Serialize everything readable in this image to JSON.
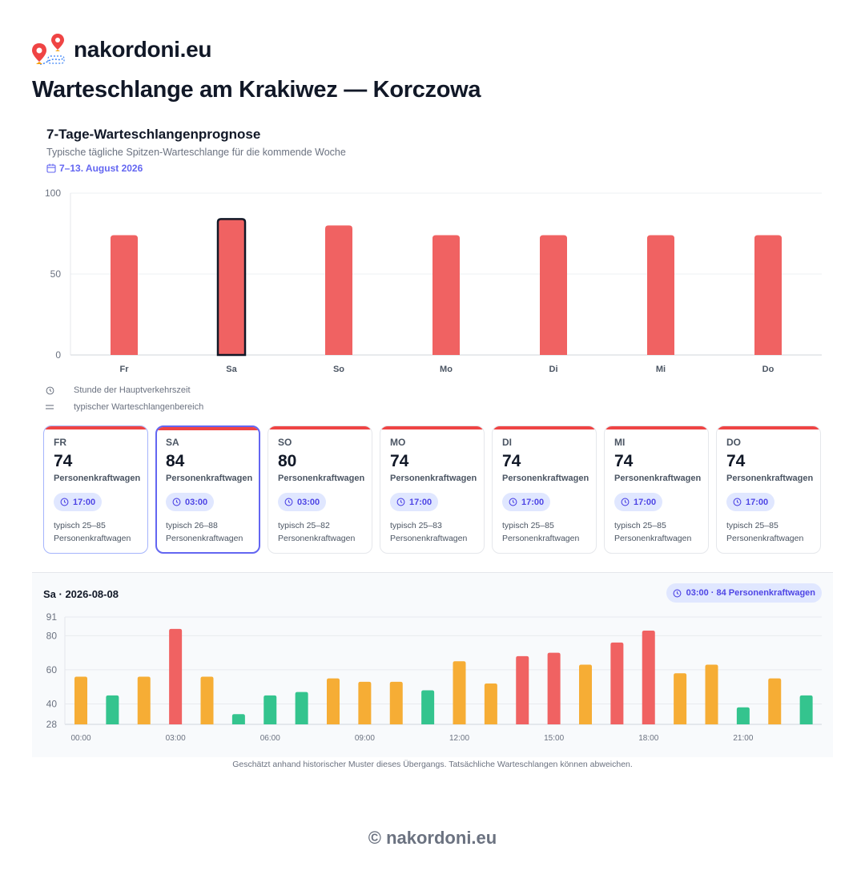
{
  "brand": {
    "name": "nakordoni.eu",
    "logo_icon": "map-pin-route-icon"
  },
  "page_title": "Warteschlange am Krakiwez — Korczowa",
  "forecast": {
    "title": "7-Tage-Warteschlangenprognose",
    "subtitle": "Typische tägliche Spitzen-Warteschlange für die kommende Woche",
    "date_range": "7–13. August 2026",
    "date_icon": "calendar-icon"
  },
  "legend": {
    "peak_hour": {
      "icon": "clock-icon",
      "label": "Stunde der Hauptverkehrszeit"
    },
    "range": {
      "icon": "equals-icon",
      "label": "typischer Warteschlangenbereich"
    }
  },
  "day_cards": [
    {
      "abbr": "FR",
      "value": "74",
      "unit": "Personenkraftwagen",
      "peak_time": "17:00",
      "range_text": "typisch 25–85",
      "range_unit": "Personenkraftwagen"
    },
    {
      "abbr": "SA",
      "value": "84",
      "unit": "Personenkraftwagen",
      "peak_time": "03:00",
      "range_text": "typisch 26–88",
      "range_unit": "Personenkraftwagen"
    },
    {
      "abbr": "SO",
      "value": "80",
      "unit": "Personenkraftwagen",
      "peak_time": "03:00",
      "range_text": "typisch 25–82",
      "range_unit": "Personenkraftwagen"
    },
    {
      "abbr": "MO",
      "value": "74",
      "unit": "Personenkraftwagen",
      "peak_time": "17:00",
      "range_text": "typisch 25–83",
      "range_unit": "Personenkraftwagen"
    },
    {
      "abbr": "DI",
      "value": "74",
      "unit": "Personenkraftwagen",
      "peak_time": "17:00",
      "range_text": "typisch 25–85",
      "range_unit": "Personenkraftwagen"
    },
    {
      "abbr": "MI",
      "value": "74",
      "unit": "Personenkraftwagen",
      "peak_time": "17:00",
      "range_text": "typisch 25–85",
      "range_unit": "Personenkraftwagen"
    },
    {
      "abbr": "DO",
      "value": "74",
      "unit": "Personenkraftwagen",
      "peak_time": "17:00",
      "range_text": "typisch 25–85",
      "range_unit": "Personenkraftwagen"
    }
  ],
  "hourly": {
    "title": "Sa · 2026-08-08",
    "peak_pill": "03:00 · 84 Personenkraftwagen"
  },
  "disclaimer": "Geschätzt anhand historischer Muster dieses Übergangs. Tatsächliche Warteschlangen können abweichen.",
  "footer": "© nakordoni.eu",
  "colors": {
    "bar_red": "#f06262",
    "bar_orange": "#f6ad35",
    "bar_green": "#34c48e",
    "accent": "#6366f1",
    "selected_outline": "#111827"
  },
  "chart_data": [
    {
      "type": "bar",
      "categories": [
        "Fr",
        "Sa",
        "So",
        "Mo",
        "Di",
        "Mi",
        "Do"
      ],
      "values": [
        74,
        84,
        80,
        74,
        74,
        74,
        74
      ],
      "selected_index": 1,
      "yticks": [
        0,
        50,
        100
      ],
      "ylim": [
        0,
        100
      ],
      "grid": true
    },
    {
      "type": "bar",
      "x": [
        "00:00",
        "01:00",
        "02:00",
        "03:00",
        "04:00",
        "05:00",
        "06:00",
        "07:00",
        "08:00",
        "09:00",
        "10:00",
        "11:00",
        "12:00",
        "13:00",
        "14:00",
        "15:00",
        "16:00",
        "17:00",
        "18:00",
        "19:00",
        "20:00",
        "21:00",
        "22:00",
        "23:00"
      ],
      "values": [
        56,
        45,
        56,
        84,
        56,
        34,
        45,
        47,
        55,
        53,
        53,
        48,
        65,
        52,
        68,
        70,
        63,
        76,
        83,
        58,
        63,
        38,
        55,
        45
      ],
      "levels": [
        "orange",
        "green",
        "orange",
        "red",
        "orange",
        "green",
        "green",
        "green",
        "orange",
        "orange",
        "orange",
        "green",
        "orange",
        "orange",
        "red",
        "red",
        "orange",
        "red",
        "red",
        "orange",
        "orange",
        "green",
        "orange",
        "green"
      ],
      "xticks": [
        "00:00",
        "03:00",
        "06:00",
        "09:00",
        "12:00",
        "15:00",
        "18:00",
        "21:00"
      ],
      "yticks": [
        28,
        40,
        60,
        80,
        91
      ],
      "ylim": [
        28,
        91
      ],
      "grid": true
    }
  ]
}
